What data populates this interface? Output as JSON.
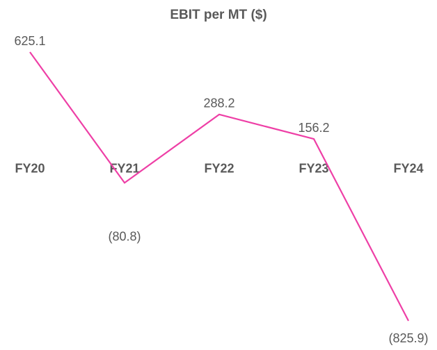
{
  "chart_data": {
    "type": "line",
    "title": "EBIT per MT ($)",
    "categories": [
      "FY20",
      "FY21",
      "FY22",
      "FY23",
      "FY24"
    ],
    "series": [
      {
        "name": "EBIT per MT",
        "color": "#ee3fa6",
        "values": [
          625.1,
          -80.8,
          288.2,
          156.2,
          -825.9
        ],
        "value_labels": [
          "625.1",
          "(80.8)",
          "288.2",
          "156.2",
          "(825.9)"
        ]
      }
    ]
  }
}
